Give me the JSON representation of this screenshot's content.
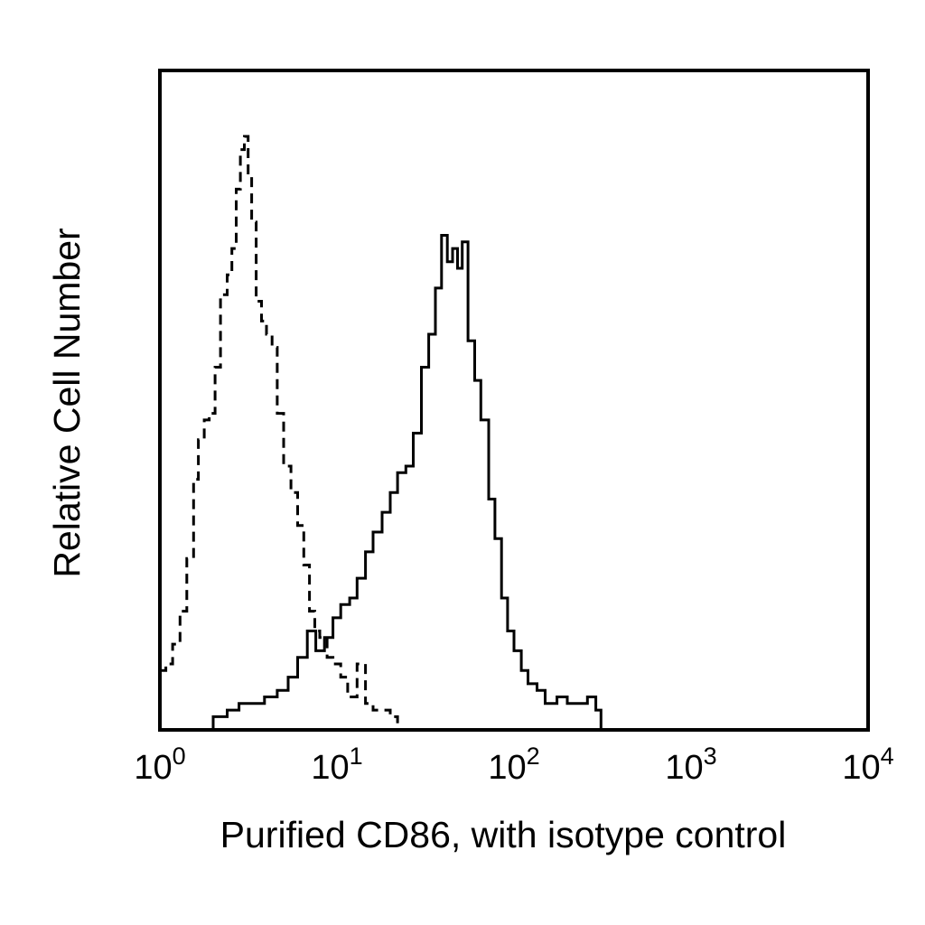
{
  "chart_data": {
    "type": "line",
    "title": "",
    "xlabel": "Purified CD86, with isotype control",
    "ylabel": "Relative Cell Number",
    "x_scale": "log",
    "xlim": [
      1,
      10000
    ],
    "ylim": [
      0,
      100
    ],
    "grid": false,
    "legend": "none",
    "x_ticks": [
      {
        "value": 1,
        "base": "10",
        "exp": "0"
      },
      {
        "value": 10,
        "base": "10",
        "exp": "1"
      },
      {
        "value": 100,
        "base": "10",
        "exp": "2"
      },
      {
        "value": 1000,
        "base": "10",
        "exp": "3"
      },
      {
        "value": 10000,
        "base": "10",
        "exp": "4"
      }
    ],
    "series": [
      {
        "style": "dashed",
        "color": "#000000",
        "points": [
          [
            1.0,
            9
          ],
          [
            1.08,
            10
          ],
          [
            1.18,
            13
          ],
          [
            1.3,
            18
          ],
          [
            1.42,
            26
          ],
          [
            1.55,
            38
          ],
          [
            1.65,
            44
          ],
          [
            1.78,
            47
          ],
          [
            1.9,
            48
          ],
          [
            2.05,
            55
          ],
          [
            2.2,
            66
          ],
          [
            2.4,
            69
          ],
          [
            2.55,
            73
          ],
          [
            2.7,
            82
          ],
          [
            2.85,
            88
          ],
          [
            3.0,
            90
          ],
          [
            3.15,
            84
          ],
          [
            3.3,
            77
          ],
          [
            3.5,
            65
          ],
          [
            3.75,
            62
          ],
          [
            4.0,
            60
          ],
          [
            4.3,
            58
          ],
          [
            4.6,
            48
          ],
          [
            5.0,
            40
          ],
          [
            5.5,
            36
          ],
          [
            6.0,
            31
          ],
          [
            6.5,
            25
          ],
          [
            7.0,
            18
          ],
          [
            7.5,
            15
          ],
          [
            8.0,
            14
          ],
          [
            8.8,
            11
          ],
          [
            9.5,
            10
          ],
          [
            10.5,
            8
          ],
          [
            11.5,
            5
          ],
          [
            13.0,
            10
          ],
          [
            14.5,
            4
          ],
          [
            16.0,
            3
          ],
          [
            18.0,
            3
          ],
          [
            20.0,
            2
          ],
          [
            22.0,
            0
          ]
        ]
      },
      {
        "style": "solid",
        "color": "#000000",
        "points": [
          [
            1.8,
            0
          ],
          [
            2.0,
            2
          ],
          [
            2.4,
            3
          ],
          [
            2.8,
            4
          ],
          [
            3.3,
            4
          ],
          [
            3.9,
            5
          ],
          [
            4.6,
            6
          ],
          [
            5.3,
            8
          ],
          [
            6.0,
            11
          ],
          [
            6.8,
            15
          ],
          [
            7.6,
            12
          ],
          [
            8.5,
            14
          ],
          [
            9.5,
            17
          ],
          [
            10.5,
            19
          ],
          [
            11.8,
            20
          ],
          [
            13.0,
            23
          ],
          [
            14.5,
            27
          ],
          [
            16.0,
            30
          ],
          [
            18.0,
            33
          ],
          [
            20.0,
            36
          ],
          [
            22.0,
            39
          ],
          [
            24.5,
            40
          ],
          [
            27.0,
            45
          ],
          [
            30.0,
            55
          ],
          [
            33.0,
            60
          ],
          [
            36.0,
            67
          ],
          [
            39.0,
            75
          ],
          [
            42.0,
            71
          ],
          [
            45.0,
            73
          ],
          [
            48.0,
            70
          ],
          [
            51.0,
            74
          ],
          [
            55.0,
            59
          ],
          [
            60.0,
            53
          ],
          [
            65.0,
            47
          ],
          [
            72.0,
            35
          ],
          [
            78.0,
            29
          ],
          [
            85.0,
            20
          ],
          [
            92.0,
            15
          ],
          [
            100.0,
            12
          ],
          [
            110.0,
            9
          ],
          [
            120.0,
            7
          ],
          [
            135.0,
            6
          ],
          [
            150.0,
            4
          ],
          [
            175.0,
            5
          ],
          [
            200.0,
            4
          ],
          [
            230.0,
            4
          ],
          [
            260.0,
            5
          ],
          [
            290.0,
            3
          ],
          [
            310.0,
            0
          ]
        ]
      }
    ]
  }
}
